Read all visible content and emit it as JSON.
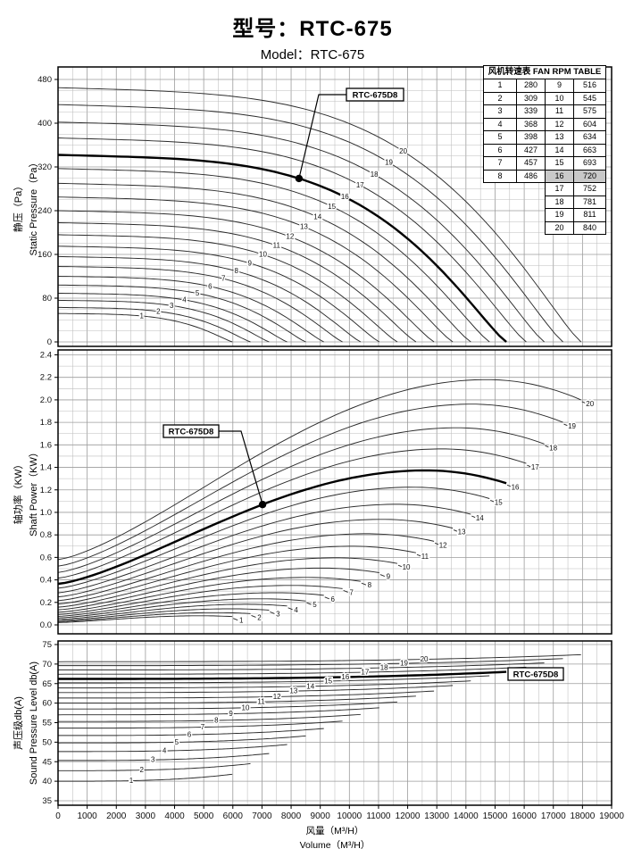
{
  "title": {
    "model_cn": "型号：RTC-675",
    "model_en": "Model：RTC-675"
  },
  "annotation_label": "RTC-675D8",
  "rpm_table": {
    "header": "风机转速表 FAN RPM TABLE",
    "highlight_fan": 16,
    "highlight_color": "#c9c9c9",
    "left_rows": [
      [
        1,
        280
      ],
      [
        2,
        309
      ],
      [
        3,
        339
      ],
      [
        4,
        368
      ],
      [
        5,
        398
      ],
      [
        6,
        427
      ],
      [
        7,
        457
      ],
      [
        8,
        486
      ]
    ],
    "right_rows": [
      [
        9,
        516
      ],
      [
        10,
        545
      ],
      [
        11,
        575
      ],
      [
        12,
        604
      ],
      [
        13,
        634
      ],
      [
        14,
        663
      ],
      [
        15,
        693
      ],
      [
        16,
        720
      ],
      [
        17,
        752
      ],
      [
        18,
        781
      ],
      [
        19,
        811
      ],
      [
        20,
        840
      ]
    ]
  },
  "fans": {
    "ids": [
      "1",
      "2",
      "3",
      "4",
      "5",
      "6",
      "7",
      "8",
      "9",
      "10",
      "11",
      "12",
      "13",
      "14",
      "15",
      "16",
      "17",
      "18",
      "19",
      "20"
    ],
    "rpm": [
      280,
      309,
      339,
      368,
      398,
      427,
      457,
      486,
      516,
      545,
      575,
      604,
      634,
      663,
      693,
      720,
      752,
      781,
      811,
      840
    ],
    "max_volume_m3h": [
      5983,
      6604,
      7244,
      7864,
      8504,
      9124,
      9765,
      10386,
      11027,
      11646,
      12287,
      12906,
      13548,
      14168,
      14809,
      15386,
      16069,
      16690,
      17331,
      17950
    ],
    "bold_fan": 16
  },
  "x_axis": {
    "label_cn": "风量（M³/H）",
    "label_en": "Volume（M³/H）",
    "min": 0,
    "max": 19000,
    "tick_step": 1000,
    "grid_step": 500,
    "tick_labels": [
      "0",
      "1000",
      "2000",
      "3000",
      "4000",
      "5000",
      "6000",
      "7000",
      "8000",
      "9000",
      "10000",
      "11000",
      "12000",
      "13000",
      "14000",
      "15000",
      "16000",
      "17000",
      "18000",
      "19000"
    ]
  },
  "chart_data": [
    {
      "type": "line",
      "ylabel_cn": "静压（Pa）",
      "ylabel_en": "Static Pressure（Pa）",
      "ylim": [
        0,
        480
      ],
      "ytick": 80,
      "ygrid": 20,
      "ytick_labels": [
        "0",
        "80",
        "160",
        "240",
        "320",
        "400",
        "480"
      ],
      "grid": true,
      "shutoff_pressure_pa": [
        52,
        63,
        76,
        89,
        104,
        120,
        138,
        156,
        175,
        196,
        218,
        240,
        265,
        290,
        317,
        342,
        373,
        402,
        434,
        465
      ],
      "shape": {
        "linear_term": 0.05,
        "power_term": 0.95,
        "exponent": 4,
        "outer_exponent": 1.2
      },
      "annotation": {
        "label": "RTC-675D8",
        "fan": 16,
        "at_volume": 8270,
        "pressure_pa": 300
      }
    },
    {
      "type": "line",
      "ylabel_cn": "轴功率（KW）",
      "ylabel_en": "Shaft Power（KW）",
      "ylim": [
        0,
        2.4
      ],
      "ytick": 0.2,
      "ygrid": 0.1,
      "ytick_labels": [
        "0.0",
        "0.2",
        "0.4",
        "0.6",
        "0.8",
        "1.0",
        "1.2",
        "1.4",
        "1.6",
        "1.8",
        "2.0",
        "2.2",
        "2.4"
      ],
      "grid": true,
      "power_at_zero_kw": [
        0.021,
        0.029,
        0.038,
        0.049,
        0.062,
        0.076,
        0.093,
        0.112,
        0.134,
        0.158,
        0.186,
        0.216,
        0.249,
        0.285,
        0.326,
        0.365,
        0.416,
        0.466,
        0.522,
        0.58
      ],
      "peak_power_kw": [
        0.081,
        0.109,
        0.143,
        0.183,
        0.232,
        0.286,
        0.351,
        0.422,
        0.505,
        0.596,
        0.699,
        0.81,
        0.938,
        1.072,
        1.224,
        1.373,
        1.564,
        1.752,
        1.962,
        2.18
      ],
      "end_power_kw": [
        0.074,
        0.1,
        0.131,
        0.168,
        0.213,
        0.263,
        0.322,
        0.387,
        0.464,
        0.546,
        0.641,
        0.743,
        0.86,
        0.983,
        1.123,
        1.259,
        1.435,
        1.608,
        1.8,
        2.0
      ],
      "peak_volume_frac": 0.82,
      "annotation": {
        "label": "RTC-675D8",
        "fan": 16,
        "at_volume": 7020,
        "power_kw": 1.07
      }
    },
    {
      "type": "line",
      "ylabel_cn": "声压级db(A)",
      "ylabel_en": "Sound Pressure Level db(A)",
      "ylim": [
        35,
        75
      ],
      "ytick": 5,
      "ygrid": 5,
      "ytick_labels": [
        "35",
        "40",
        "45",
        "50",
        "55",
        "60",
        "65",
        "70",
        "75"
      ],
      "grid": true,
      "start_db": [
        40.0,
        42.7,
        45.3,
        47.6,
        49.8,
        51.7,
        53.6,
        55.3,
        57.0,
        58.5,
        60.0,
        61.3,
        62.7,
        63.9,
        65.2,
        66.2,
        67.4,
        68.5,
        69.6,
        70.6
      ],
      "rise_db": 1.8,
      "annotation": {
        "label": "RTC-675D8",
        "fan": 16,
        "at_curve_end": true
      }
    }
  ]
}
